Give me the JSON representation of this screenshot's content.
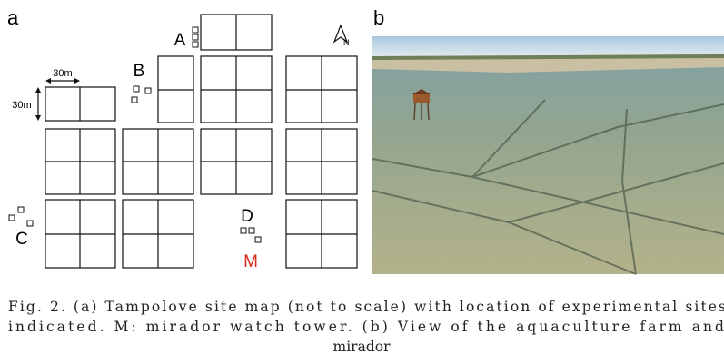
{
  "panel_a": {
    "label": "a",
    "north": "N",
    "scale": {
      "horizontal": "30m",
      "vertical": "30m"
    },
    "sites": [
      {
        "label": "A"
      },
      {
        "label": "B"
      },
      {
        "label": "C"
      },
      {
        "label": "D"
      }
    ],
    "tower": "M"
  },
  "panel_b": {
    "label": "b"
  },
  "caption": {
    "lines": [
      "Fig. 2. (a) Tampolove site map (not to scale) with location of experimental sites",
      "indicated. M: mirador watch tower. (b) View of the aquaculture farm and",
      "mirador"
    ]
  }
}
